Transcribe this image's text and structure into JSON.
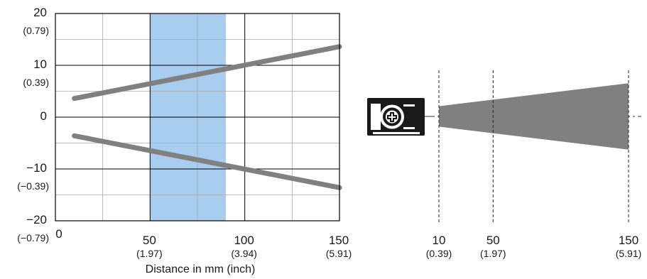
{
  "chart_data": [
    {
      "type": "line",
      "title": "",
      "xlabel": "Distance in mm (inch)",
      "ylabel": "",
      "xlim": [
        0,
        150
      ],
      "ylim": [
        -20,
        20
      ],
      "grid": true,
      "x_ticks": [
        {
          "value": 0,
          "label": "0",
          "sub": ""
        },
        {
          "value": 50,
          "label": "50",
          "sub": "(1.97)"
        },
        {
          "value": 100,
          "label": "100",
          "sub": "(3.94)"
        },
        {
          "value": 150,
          "label": "150",
          "sub": "(5.91)"
        }
      ],
      "y_ticks": [
        {
          "value": 20,
          "label": "20",
          "sub": "(0.79)"
        },
        {
          "value": 10,
          "label": "10",
          "sub": "(0.39)"
        },
        {
          "value": 0,
          "label": "0",
          "sub": ""
        },
        {
          "value": -10,
          "label": "−10",
          "sub": "(−0.39)"
        },
        {
          "value": -20,
          "label": "−20",
          "sub": "(−0.79)"
        }
      ],
      "highlight_band": {
        "x_start": 50,
        "x_end": 90,
        "color": "#a9cdee"
      },
      "series": [
        {
          "x": [
            10,
            150
          ],
          "y": [
            3.6,
            13.6
          ],
          "color": "#808080"
        },
        {
          "x": [
            10,
            150
          ],
          "y": [
            -3.6,
            -13.6
          ],
          "color": "#808080"
        }
      ]
    },
    {
      "type": "area",
      "title": "",
      "xlim": [
        10,
        150
      ],
      "beam": {
        "x": [
          10,
          150
        ],
        "half_width": [
          2,
          6.5
        ],
        "color": "#808080"
      },
      "marker_lines": [
        10,
        50,
        150
      ],
      "x_ticks": [
        {
          "value": 10,
          "label": "10",
          "sub": "(0.39)"
        },
        {
          "value": 50,
          "label": "50",
          "sub": "(1.97)"
        },
        {
          "value": 150,
          "label": "150",
          "sub": "(5.91)"
        }
      ]
    }
  ],
  "sensor": {
    "icon": "sensor-device-icon"
  }
}
